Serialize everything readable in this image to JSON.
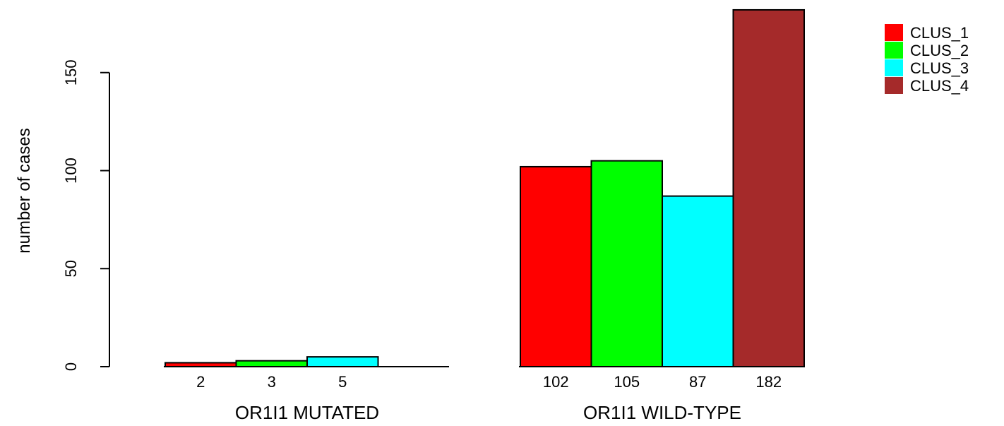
{
  "chart_data": {
    "type": "bar",
    "ylabel": "number of cases",
    "ylim": [
      0,
      180
    ],
    "yticks": [
      0,
      50,
      100,
      150
    ],
    "legend": {
      "position": "top-right"
    },
    "series": [
      {
        "name": "CLUS_1",
        "color": "#ff0000"
      },
      {
        "name": "CLUS_2",
        "color": "#00ff00"
      },
      {
        "name": "CLUS_3",
        "color": "#00ffff"
      },
      {
        "name": "CLUS_4",
        "color": "#a52a2a"
      }
    ],
    "groups": [
      {
        "label": "OR1I1 MUTATED",
        "values": [
          2,
          3,
          5,
          0
        ],
        "value_labels": [
          "2",
          "3",
          "5",
          ""
        ]
      },
      {
        "label": "OR1I1 WILD-TYPE",
        "values": [
          102,
          105,
          87,
          182
        ],
        "value_labels": [
          "102",
          "105",
          "87",
          "182"
        ]
      }
    ]
  }
}
